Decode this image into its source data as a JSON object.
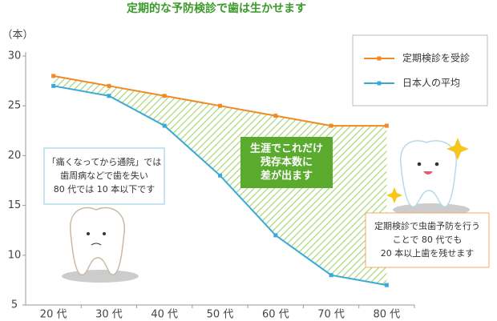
{
  "chart_data": {
    "type": "line",
    "title": "定期的な予防検診で歯は生かせます",
    "y_unit": "（本）",
    "categories": [
      "20 代",
      "30 代",
      "40 代",
      "50 代",
      "60 代",
      "70 代",
      "80 代"
    ],
    "series": [
      {
        "name": "定期検診を受診",
        "color": "#f08a24",
        "values": [
          28,
          27,
          26,
          25,
          24,
          23,
          23
        ]
      },
      {
        "name": "日本人の平均",
        "color": "#3aa9d6",
        "values": [
          27,
          26,
          23,
          18,
          12,
          8,
          7
        ]
      }
    ],
    "ylim": [
      5,
      30
    ],
    "yticks": [
      5,
      10,
      15,
      20,
      25,
      30
    ],
    "legend": "top-right",
    "fill_between": true,
    "fill_color": "#8cc63f",
    "center_note": [
      "生涯でこれだけ",
      "残存本数に",
      "差が出ます"
    ],
    "left_note": [
      "「痛くなってから通院」では",
      "歯周病などで歯を失い",
      "80 代では 10 本以下です"
    ],
    "right_note": [
      "定期検診で虫歯予防を行う",
      "ことで 80 代でも",
      "20 本以上歯を残せます"
    ]
  }
}
